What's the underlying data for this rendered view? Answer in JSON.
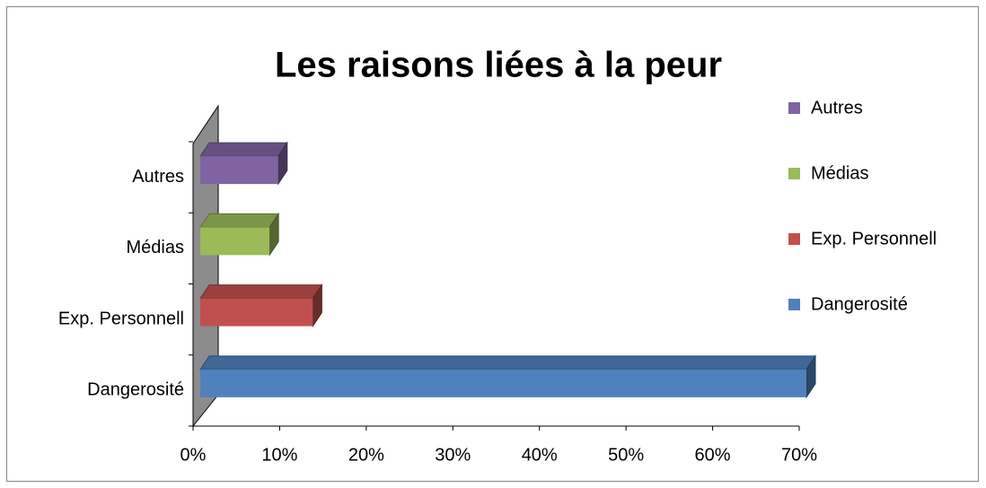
{
  "chart_data": {
    "type": "bar3d-horizontal",
    "title": "Les raisons liées à la peur",
    "categories": [
      "Dangerosité",
      "Exp. Personnell",
      "Médias",
      "Autres"
    ],
    "values": [
      70,
      13,
      8,
      9
    ],
    "colors": [
      "#4f81bd",
      "#c0504d",
      "#9bbb59",
      "#8064a2"
    ],
    "xlim": [
      0,
      70
    ],
    "xticks": [
      {
        "value": 0,
        "label": "0%"
      },
      {
        "value": 10,
        "label": "10%"
      },
      {
        "value": 20,
        "label": "20%"
      },
      {
        "value": 30,
        "label": "30%"
      },
      {
        "value": 40,
        "label": "40%"
      },
      {
        "value": 50,
        "label": "50%"
      },
      {
        "value": 60,
        "label": "60%"
      },
      {
        "value": 70,
        "label": "70%"
      }
    ],
    "legend": "right"
  }
}
